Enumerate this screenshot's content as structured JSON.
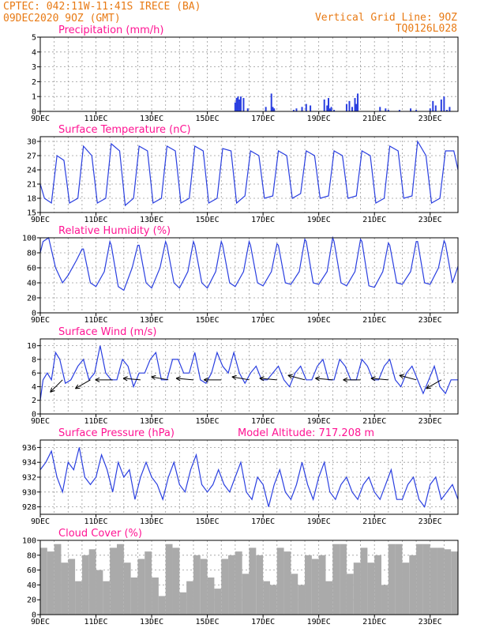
{
  "header": {
    "line1": "CPTEC:   042:11W-11:41S   IRECE (BA)",
    "line2": "09DEC2020 9OZ (GMT)",
    "right1": "Vertical Grid Line: 9OZ",
    "right2": "TQ0126L028"
  },
  "x_labels": [
    "9DEC",
    "11DEC",
    "13DEC",
    "15DEC",
    "17DEC",
    "19DEC",
    "21DEC",
    "23DEC"
  ],
  "model_altitude": "Model Altitude: 717.208  m",
  "chart_data": [
    {
      "type": "bar",
      "title": "Precipitation (mm/h)",
      "x_days": [
        0,
        15
      ],
      "ylim": [
        0,
        5
      ],
      "yticks": [
        "0",
        "1",
        "2",
        "3",
        "4",
        "5"
      ],
      "grid": true,
      "x": [
        7.0,
        7.05,
        7.1,
        7.15,
        7.2,
        7.3,
        7.45,
        8.1,
        8.3,
        8.35,
        8.4,
        9.1,
        9.2,
        9.4,
        9.55,
        9.7,
        10.2,
        10.3,
        10.35,
        10.4,
        10.45,
        10.55,
        11.0,
        11.1,
        11.2,
        11.3,
        11.35,
        11.4,
        12.2,
        12.4,
        12.5,
        12.9,
        13.3,
        13.5,
        14.0,
        14.1,
        14.2,
        14.4,
        14.5,
        14.6,
        14.7
      ],
      "values": [
        0.6,
        0.9,
        1.0,
        0.8,
        1.0,
        0.9,
        0.2,
        0.3,
        1.2,
        0.3,
        0.2,
        0.1,
        0.2,
        0.3,
        0.5,
        0.4,
        0.8,
        0.4,
        0.9,
        0.2,
        0.3,
        0.1,
        0.5,
        0.7,
        0.3,
        0.9,
        0.5,
        1.2,
        0.3,
        0.2,
        0.1,
        0.1,
        0.2,
        0.1,
        0.2,
        0.7,
        0.4,
        0.8,
        1.0,
        0.1,
        0.3
      ]
    },
    {
      "type": "line",
      "title": "Surface Temperature (nC)",
      "x_days": [
        0,
        15
      ],
      "ylim": [
        15,
        31
      ],
      "yticks": [
        "15",
        "18",
        "21",
        "24",
        "27",
        "30"
      ],
      "ytick_values": [
        15,
        18,
        21,
        24,
        27,
        30
      ],
      "grid": true,
      "x": [
        0.0,
        0.15,
        0.4,
        0.6,
        0.85,
        1.05,
        1.35,
        1.55,
        1.85,
        2.05,
        2.35,
        2.55,
        2.85,
        3.05,
        3.35,
        3.55,
        3.85,
        4.05,
        4.35,
        4.55,
        4.85,
        5.05,
        5.35,
        5.55,
        5.85,
        6.05,
        6.35,
        6.55,
        6.85,
        7.05,
        7.35,
        7.55,
        7.85,
        8.05,
        8.35,
        8.55,
        8.85,
        9.05,
        9.35,
        9.55,
        9.85,
        10.05,
        10.35,
        10.55,
        10.85,
        11.05,
        11.35,
        11.55,
        11.85,
        12.05,
        12.35,
        12.55,
        12.85,
        13.05,
        13.35,
        13.55,
        13.85,
        14.05,
        14.35,
        14.55,
        14.85,
        15.0
      ],
      "values": [
        21,
        18,
        17,
        27,
        26,
        17,
        18,
        29,
        27,
        17,
        18,
        29.5,
        28,
        16.5,
        18,
        29,
        28,
        17,
        18,
        29,
        28,
        17,
        18,
        29,
        28,
        17,
        18,
        28.5,
        28,
        17,
        18.5,
        28,
        27,
        18,
        18.5,
        28,
        27,
        18,
        19,
        28,
        27,
        18,
        18.5,
        28,
        27,
        18,
        18.5,
        28,
        27,
        17,
        18,
        29,
        28,
        18,
        18.5,
        30,
        27,
        17,
        18,
        28,
        28,
        24
      ]
    },
    {
      "type": "line",
      "title": "Relative Humidity (%)",
      "x_days": [
        0,
        15
      ],
      "ylim": [
        0,
        100
      ],
      "yticks": [
        "0",
        "20",
        "40",
        "60",
        "80",
        "100"
      ],
      "grid": true,
      "x": [
        0.0,
        0.1,
        0.3,
        0.55,
        0.8,
        1.0,
        1.3,
        1.5,
        1.55,
        1.8,
        2.0,
        2.3,
        2.5,
        2.55,
        2.8,
        3.0,
        3.3,
        3.5,
        3.55,
        3.8,
        4.0,
        4.3,
        4.5,
        4.55,
        4.8,
        5.0,
        5.3,
        5.5,
        5.55,
        5.8,
        6.0,
        6.3,
        6.5,
        6.55,
        6.8,
        7.0,
        7.3,
        7.5,
        7.55,
        7.8,
        8.0,
        8.3,
        8.5,
        8.55,
        8.8,
        9.0,
        9.3,
        9.5,
        9.55,
        9.8,
        10.0,
        10.3,
        10.5,
        10.55,
        10.8,
        11.0,
        11.3,
        11.5,
        11.55,
        11.8,
        12.0,
        12.3,
        12.5,
        12.55,
        12.8,
        13.0,
        13.3,
        13.5,
        13.55,
        13.8,
        14.0,
        14.3,
        14.5,
        14.55,
        14.8,
        15.0
      ],
      "values": [
        80,
        95,
        100,
        60,
        40,
        50,
        70,
        85,
        85,
        40,
        35,
        55,
        95,
        90,
        35,
        30,
        60,
        90,
        90,
        40,
        33,
        60,
        95,
        90,
        40,
        33,
        55,
        95,
        90,
        40,
        33,
        55,
        95,
        90,
        40,
        35,
        55,
        95,
        90,
        40,
        36,
        55,
        92,
        90,
        40,
        38,
        55,
        98,
        95,
        40,
        38,
        55,
        100,
        95,
        40,
        36,
        55,
        98,
        95,
        36,
        34,
        55,
        93,
        90,
        40,
        38,
        55,
        95,
        95,
        40,
        38,
        60,
        96,
        92,
        40,
        62
      ]
    },
    {
      "type": "line",
      "title": "Surface Wind (m/s)",
      "x_days": [
        0,
        15
      ],
      "ylim": [
        0,
        11
      ],
      "yticks": [
        "0",
        "2",
        "4",
        "6",
        "8",
        "10"
      ],
      "grid": true,
      "x": [
        0.0,
        0.1,
        0.25,
        0.4,
        0.55,
        0.7,
        0.9,
        1.1,
        1.35,
        1.55,
        1.75,
        1.95,
        2.15,
        2.35,
        2.55,
        2.75,
        2.95,
        3.15,
        3.35,
        3.55,
        3.75,
        3.95,
        4.15,
        4.35,
        4.55,
        4.75,
        4.95,
        5.15,
        5.35,
        5.55,
        5.75,
        5.95,
        6.15,
        6.35,
        6.55,
        6.75,
        6.95,
        7.15,
        7.35,
        7.55,
        7.75,
        7.95,
        8.15,
        8.35,
        8.55,
        8.75,
        8.95,
        9.15,
        9.35,
        9.55,
        9.75,
        9.95,
        10.15,
        10.35,
        10.55,
        10.75,
        10.95,
        11.15,
        11.35,
        11.55,
        11.75,
        11.95,
        12.15,
        12.35,
        12.55,
        12.75,
        12.95,
        13.15,
        13.35,
        13.55,
        13.75,
        13.95,
        14.15,
        14.35,
        14.55,
        14.75,
        15.0
      ],
      "values": [
        2,
        5,
        6,
        5,
        9,
        8,
        4.5,
        5,
        7,
        8,
        5,
        6,
        10,
        6,
        5,
        5,
        8,
        7,
        4,
        6,
        6,
        8,
        9,
        5,
        5,
        8,
        8,
        6,
        6,
        9,
        5,
        4.5,
        6,
        9,
        7,
        6,
        9,
        6,
        4.5,
        6,
        7,
        5,
        5,
        6,
        7,
        5,
        4,
        6,
        7,
        5,
        5,
        7,
        8,
        5,
        5,
        8,
        7,
        5,
        5,
        8,
        7,
        5,
        5,
        7,
        8,
        5,
        4,
        6,
        7,
        5,
        3,
        5,
        7,
        4,
        3,
        5,
        5
      ],
      "arrows": [
        {
          "x": 0.8,
          "dir": 225
        },
        {
          "x": 1.8,
          "dir": 240
        },
        {
          "x": 2.6,
          "dir": 270
        },
        {
          "x": 3.6,
          "dir": 275
        },
        {
          "x": 4.6,
          "dir": 280
        },
        {
          "x": 5.5,
          "dir": 275
        },
        {
          "x": 6.5,
          "dir": 270
        },
        {
          "x": 7.5,
          "dir": 280
        },
        {
          "x": 8.5,
          "dir": 275
        },
        {
          "x": 9.5,
          "dir": 285
        },
        {
          "x": 10.5,
          "dir": 275
        },
        {
          "x": 11.5,
          "dir": 270
        },
        {
          "x": 12.5,
          "dir": 275
        },
        {
          "x": 13.5,
          "dir": 285
        },
        {
          "x": 14.4,
          "dir": 240
        }
      ]
    },
    {
      "type": "line",
      "title": "Surface Pressure (hPa)",
      "x_days": [
        0,
        15
      ],
      "ylim": [
        927,
        937
      ],
      "yticks": [
        "928",
        "930",
        "932",
        "934",
        "936"
      ],
      "ytick_values": [
        928,
        930,
        932,
        934,
        936
      ],
      "grid": true,
      "x": [
        0.0,
        0.2,
        0.4,
        0.6,
        0.8,
        1.0,
        1.2,
        1.4,
        1.6,
        1.8,
        2.0,
        2.2,
        2.4,
        2.6,
        2.8,
        3.0,
        3.2,
        3.4,
        3.6,
        3.8,
        4.0,
        4.2,
        4.4,
        4.6,
        4.8,
        5.0,
        5.2,
        5.4,
        5.6,
        5.8,
        6.0,
        6.2,
        6.4,
        6.6,
        6.8,
        7.0,
        7.2,
        7.4,
        7.6,
        7.8,
        8.0,
        8.2,
        8.4,
        8.6,
        8.8,
        9.0,
        9.2,
        9.4,
        9.6,
        9.8,
        10.0,
        10.2,
        10.4,
        10.6,
        10.8,
        11.0,
        11.2,
        11.4,
        11.6,
        11.8,
        12.0,
        12.2,
        12.4,
        12.6,
        12.8,
        13.0,
        13.2,
        13.4,
        13.6,
        13.8,
        14.0,
        14.2,
        14.4,
        14.6,
        14.8,
        15.0
      ],
      "values": [
        933,
        934,
        935.5,
        932,
        930,
        934,
        933,
        936,
        932,
        931,
        932,
        935,
        933,
        930,
        934,
        932,
        933,
        929,
        932,
        934,
        932,
        931,
        929,
        932,
        934,
        931,
        930,
        933,
        935,
        931,
        930,
        931,
        933,
        931,
        930,
        932,
        934,
        930,
        929,
        932,
        931,
        928,
        931,
        933,
        930,
        929,
        931,
        934,
        931,
        929,
        932,
        934,
        930,
        929,
        931,
        932,
        930,
        929,
        931,
        932,
        930,
        929,
        931,
        933,
        929,
        929,
        931,
        932,
        929,
        928,
        931,
        932,
        929,
        930,
        931,
        929
      ]
    },
    {
      "type": "bar",
      "title": "Cloud Cover (%)",
      "x_days": [
        0,
        15
      ],
      "ylim": [
        0,
        100
      ],
      "yticks": [
        "0",
        "20",
        "40",
        "60",
        "80",
        "100"
      ],
      "grid": true,
      "x": [
        0.0,
        0.25,
        0.5,
        0.75,
        1.0,
        1.25,
        1.5,
        1.75,
        2.0,
        2.25,
        2.5,
        2.75,
        3.0,
        3.25,
        3.5,
        3.75,
        4.0,
        4.25,
        4.5,
        4.75,
        5.0,
        5.25,
        5.5,
        5.75,
        6.0,
        6.25,
        6.5,
        6.75,
        7.0,
        7.25,
        7.5,
        7.75,
        8.0,
        8.25,
        8.5,
        8.75,
        9.0,
        9.25,
        9.5,
        9.75,
        10.0,
        10.25,
        10.5,
        10.75,
        11.0,
        11.25,
        11.5,
        11.75,
        12.0,
        12.25,
        12.5,
        12.75,
        13.0,
        13.25,
        13.5,
        13.75,
        14.0,
        14.25,
        14.5,
        14.75
      ],
      "values": [
        90,
        85,
        95,
        70,
        75,
        45,
        80,
        88,
        60,
        45,
        90,
        95,
        70,
        50,
        75,
        85,
        50,
        25,
        95,
        90,
        30,
        45,
        80,
        75,
        50,
        35,
        75,
        80,
        85,
        55,
        90,
        80,
        45,
        40,
        90,
        85,
        55,
        40,
        80,
        75,
        80,
        45,
        95,
        95,
        55,
        70,
        90,
        70,
        80,
        40,
        95,
        95,
        70,
        80,
        95,
        95,
        90,
        90,
        88,
        85
      ]
    }
  ]
}
